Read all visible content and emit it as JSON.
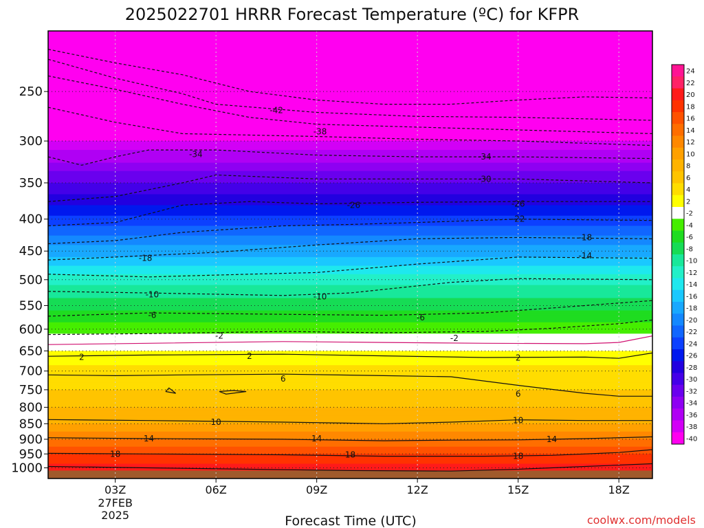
{
  "chart_data": {
    "type": "heatmap",
    "title": "2025022701 HRRR Forecast Temperature (ºC) for KFPR",
    "xlabel": "Forecast Time (UTC)",
    "credit": "coolwx.com/models",
    "x_ticks": [
      {
        "hour": 3,
        "label": "03Z",
        "sub": [
          "27FEB",
          "2025"
        ]
      },
      {
        "hour": 6,
        "label": "06Z"
      },
      {
        "hour": 9,
        "label": "09Z"
      },
      {
        "hour": 12,
        "label": "12Z"
      },
      {
        "hour": 15,
        "label": "15Z"
      },
      {
        "hour": 18,
        "label": "18Z"
      }
    ],
    "x_range_hours": [
      1,
      19
    ],
    "y_scale": "log-pressure",
    "y_ticks": [
      250,
      300,
      350,
      400,
      450,
      500,
      550,
      600,
      650,
      700,
      750,
      800,
      850,
      900,
      950,
      1000
    ],
    "y_range_hpa": [
      200,
      1040
    ],
    "colorbar": {
      "labels": [
        24,
        22,
        20,
        18,
        16,
        14,
        12,
        10,
        8,
        6,
        4,
        2,
        -2,
        -4,
        -6,
        -8,
        -10,
        -12,
        -14,
        -16,
        -18,
        -20,
        -22,
        -24,
        -26,
        -28,
        -30,
        -32,
        -34,
        -36,
        -38,
        -40
      ],
      "colors": [
        "#ff1493",
        "#ff2266",
        "#ff1a1a",
        "#ff3300",
        "#ff5200",
        "#ff6e00",
        "#ff8800",
        "#ffa000",
        "#ffb300",
        "#ffc400",
        "#ffdd00",
        "#ffff00",
        "#ffffff",
        "#45ee00",
        "#1fdc20",
        "#16dc55",
        "#18e89a",
        "#22f0c8",
        "#1ee8ee",
        "#1ac8ff",
        "#18a8ff",
        "#1488ff",
        "#1066ff",
        "#0c40ff",
        "#0018ee",
        "#2200e0",
        "#4400e8",
        "#6a00ee",
        "#8e00f2",
        "#b000f4",
        "#d200f6",
        "#ff00f0"
      ]
    },
    "temperature_layers": [
      {
        "p": 200,
        "t": -52
      },
      {
        "p": 250,
        "t": -45
      },
      {
        "p": 300,
        "t": -38
      },
      {
        "p": 350,
        "t": -30
      },
      {
        "p": 400,
        "t": -23
      },
      {
        "p": 450,
        "t": -17
      },
      {
        "p": 500,
        "t": -11
      },
      {
        "p": 550,
        "t": -7
      },
      {
        "p": 600,
        "t": -3
      },
      {
        "p": 650,
        "t": 2
      },
      {
        "p": 700,
        "t": 5
      },
      {
        "p": 750,
        "t": 6
      },
      {
        "p": 800,
        "t": 8
      },
      {
        "p": 850,
        "t": 10
      },
      {
        "p": 900,
        "t": 14
      },
      {
        "p": 950,
        "t": 18
      },
      {
        "p": 1000,
        "t": 21
      }
    ],
    "ground_level_hpa": 1010,
    "ground_color": "#a05a2c",
    "contour_labels": [
      {
        "value": "-42",
        "hour": 7.8,
        "p": 268
      },
      {
        "value": "-38",
        "hour": 9.1,
        "p": 290
      },
      {
        "value": "-34",
        "hour": 5.4,
        "p": 315
      },
      {
        "value": "-34",
        "hour": 14.0,
        "p": 318
      },
      {
        "value": "-30",
        "hour": 14.0,
        "p": 345
      },
      {
        "value": "-26",
        "hour": 10.1,
        "p": 380
      },
      {
        "value": "-26",
        "hour": 15.0,
        "p": 378
      },
      {
        "value": "-22",
        "hour": 15.0,
        "p": 400
      },
      {
        "value": "-18",
        "hour": 3.9,
        "p": 462
      },
      {
        "value": "-18",
        "hour": 17.0,
        "p": 428
      },
      {
        "value": "-14",
        "hour": 17.0,
        "p": 458
      },
      {
        "value": "-10",
        "hour": 4.1,
        "p": 528
      },
      {
        "value": "-10",
        "hour": 9.1,
        "p": 532
      },
      {
        "value": "-6",
        "hour": 4.1,
        "p": 570
      },
      {
        "value": "-6",
        "hour": 12.1,
        "p": 575
      },
      {
        "value": "-2",
        "hour": 6.1,
        "p": 615
      },
      {
        "value": "-2",
        "hour": 13.1,
        "p": 620
      },
      {
        "value": "2",
        "hour": 2.0,
        "p": 665
      },
      {
        "value": "2",
        "hour": 7.0,
        "p": 663
      },
      {
        "value": "2",
        "hour": 15.0,
        "p": 667
      },
      {
        "value": "6",
        "hour": 8.0,
        "p": 720
      },
      {
        "value": "6",
        "hour": 15.0,
        "p": 762
      },
      {
        "value": "10",
        "hour": 6.0,
        "p": 845
      },
      {
        "value": "10",
        "hour": 15.0,
        "p": 840
      },
      {
        "value": "14",
        "hour": 4.0,
        "p": 898
      },
      {
        "value": "14",
        "hour": 9.0,
        "p": 898
      },
      {
        "value": "14",
        "hour": 16.0,
        "p": 900
      },
      {
        "value": "18",
        "hour": 3.0,
        "p": 950
      },
      {
        "value": "18",
        "hour": 10.0,
        "p": 953
      },
      {
        "value": "18",
        "hour": 15.0,
        "p": 958
      }
    ],
    "contour_lines": [
      {
        "style": "dashed",
        "points": [
          [
            1,
            214
          ],
          [
            3,
            225
          ],
          [
            5,
            235
          ],
          [
            7,
            250
          ],
          [
            9,
            258
          ],
          [
            11,
            262
          ],
          [
            13,
            262
          ],
          [
            15,
            258
          ],
          [
            17,
            255
          ],
          [
            19,
            256
          ]
        ]
      },
      {
        "style": "dashed",
        "points": [
          [
            1,
            222
          ],
          [
            3,
            238
          ],
          [
            5,
            252
          ],
          [
            6,
            262
          ],
          [
            9,
            270
          ],
          [
            12,
            274
          ],
          [
            15,
            275
          ],
          [
            19,
            278
          ]
        ]
      },
      {
        "style": "dashed",
        "points": [
          [
            1,
            236
          ],
          [
            3,
            248
          ],
          [
            5,
            262
          ],
          [
            7,
            275
          ],
          [
            9,
            282
          ],
          [
            12,
            285
          ],
          [
            15,
            288
          ],
          [
            19,
            292
          ]
        ]
      },
      {
        "style": "dashed",
        "points": [
          [
            1,
            265
          ],
          [
            3,
            280
          ],
          [
            5,
            292
          ],
          [
            9,
            295
          ],
          [
            12,
            298
          ],
          [
            15,
            300
          ],
          [
            19,
            305
          ]
        ]
      },
      {
        "style": "dashed",
        "points": [
          [
            1,
            318
          ],
          [
            2,
            328
          ],
          [
            3,
            318
          ],
          [
            4,
            310
          ],
          [
            6,
            310
          ],
          [
            9,
            316
          ],
          [
            12,
            318
          ],
          [
            15,
            318
          ],
          [
            19,
            320
          ]
        ]
      },
      {
        "style": "dashed",
        "points": [
          [
            1,
            375
          ],
          [
            3,
            368
          ],
          [
            5,
            350
          ],
          [
            6,
            340
          ],
          [
            9,
            345
          ],
          [
            12,
            345
          ],
          [
            15,
            345
          ],
          [
            19,
            350
          ]
        ]
      },
      {
        "style": "dashed",
        "points": [
          [
            1,
            410
          ],
          [
            3,
            405
          ],
          [
            5,
            380
          ],
          [
            7,
            375
          ],
          [
            9,
            378
          ],
          [
            12,
            376
          ],
          [
            15,
            375
          ],
          [
            19,
            375
          ]
        ]
      },
      {
        "style": "dashed",
        "points": [
          [
            1,
            438
          ],
          [
            3,
            433
          ],
          [
            5,
            420
          ],
          [
            8,
            410
          ],
          [
            10,
            408
          ],
          [
            12,
            405
          ],
          [
            15,
            400
          ],
          [
            19,
            402
          ]
        ]
      },
      {
        "style": "dashed",
        "points": [
          [
            1,
            465
          ],
          [
            3,
            460
          ],
          [
            6,
            452
          ],
          [
            9,
            440
          ],
          [
            12,
            430
          ],
          [
            15,
            428
          ],
          [
            19,
            430
          ]
        ]
      },
      {
        "style": "dashed",
        "points": [
          [
            1,
            490
          ],
          [
            4,
            495
          ],
          [
            7,
            490
          ],
          [
            9,
            487
          ],
          [
            12,
            472
          ],
          [
            15,
            460
          ],
          [
            19,
            462
          ]
        ]
      },
      {
        "style": "dashed",
        "points": [
          [
            1,
            522
          ],
          [
            4,
            525
          ],
          [
            8,
            530
          ],
          [
            10,
            525
          ],
          [
            13,
            505
          ],
          [
            15,
            498
          ],
          [
            19,
            500
          ]
        ]
      },
      {
        "style": "dashed",
        "points": [
          [
            1,
            572
          ],
          [
            4,
            565
          ],
          [
            8,
            568
          ],
          [
            11,
            570
          ],
          [
            14,
            565
          ],
          [
            16,
            555
          ],
          [
            18,
            545
          ],
          [
            19,
            540
          ]
        ]
      },
      {
        "style": "dashed",
        "points": [
          [
            1,
            612
          ],
          [
            4,
            610
          ],
          [
            8,
            605
          ],
          [
            11,
            608
          ],
          [
            14,
            605
          ],
          [
            16,
            598
          ],
          [
            18,
            588
          ],
          [
            19,
            580
          ]
        ]
      },
      {
        "style": "solid",
        "color": "#d01070",
        "points": [
          [
            1,
            635
          ],
          [
            4,
            632
          ],
          [
            8,
            628
          ],
          [
            11,
            630
          ],
          [
            14,
            632
          ],
          [
            17,
            633
          ],
          [
            18,
            630
          ],
          [
            19,
            615
          ]
        ]
      },
      {
        "style": "solid",
        "points": [
          [
            1,
            663
          ],
          [
            4,
            660
          ],
          [
            8,
            658
          ],
          [
            11,
            662
          ],
          [
            14,
            666
          ],
          [
            17,
            665
          ],
          [
            18,
            668
          ],
          [
            19,
            655
          ]
        ]
      },
      {
        "style": "solid",
        "points": [
          [
            1,
            710
          ],
          [
            3,
            712
          ],
          [
            5,
            710
          ],
          [
            8,
            708
          ],
          [
            11,
            712
          ],
          [
            13,
            715
          ],
          [
            15,
            738
          ],
          [
            17,
            760
          ],
          [
            18,
            768
          ],
          [
            19,
            768
          ]
        ]
      },
      {
        "style": "solid",
        "points": [
          [
            1,
            837
          ],
          [
            4,
            840
          ],
          [
            8,
            845
          ],
          [
            11,
            850
          ],
          [
            13,
            845
          ],
          [
            15,
            838
          ],
          [
            17,
            840
          ],
          [
            19,
            840
          ]
        ]
      },
      {
        "style": "solid",
        "points": [
          [
            1,
            895
          ],
          [
            4,
            898
          ],
          [
            8,
            900
          ],
          [
            11,
            905
          ],
          [
            13,
            903
          ],
          [
            15,
            902
          ],
          [
            17,
            898
          ],
          [
            19,
            892
          ]
        ]
      },
      {
        "style": "solid",
        "points": [
          [
            1,
            948
          ],
          [
            4,
            950
          ],
          [
            8,
            953
          ],
          [
            11,
            958
          ],
          [
            14,
            958
          ],
          [
            16,
            955
          ],
          [
            18,
            945
          ],
          [
            19,
            935
          ]
        ]
      },
      {
        "style": "solid",
        "points": [
          [
            1,
            995
          ],
          [
            4,
            1000
          ],
          [
            7,
            1005
          ],
          [
            10,
            1010
          ],
          [
            13,
            1012
          ],
          [
            15,
            1005
          ],
          [
            17,
            995
          ],
          [
            19,
            985
          ]
        ]
      },
      {
        "style": "solid",
        "points": [
          [
            4.5,
            755
          ],
          [
            4.8,
            760
          ],
          [
            4.6,
            745
          ],
          [
            4.5,
            755
          ]
        ]
      },
      {
        "style": "solid",
        "points": [
          [
            6.1,
            755
          ],
          [
            6.5,
            752
          ],
          [
            6.9,
            755
          ],
          [
            6.3,
            762
          ],
          [
            6.1,
            755
          ]
        ]
      }
    ]
  }
}
